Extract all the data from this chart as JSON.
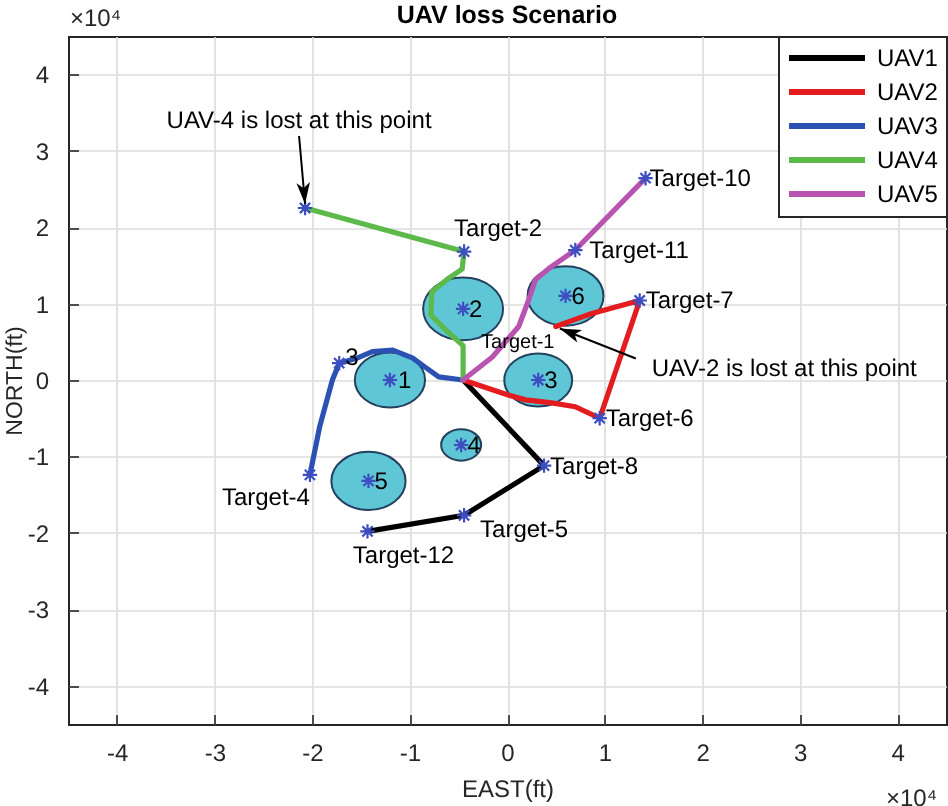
{
  "chart_data": {
    "type": "line",
    "title": "UAV loss Scenario",
    "xlabel": "EAST(ft)",
    "ylabel": "NORTH(ft)",
    "xlim": [
      -4.5,
      4.5
    ],
    "ylim": [
      -4.5,
      4.5
    ],
    "xticks": [
      -4,
      -3,
      -2,
      -1,
      0,
      1,
      2,
      3,
      4
    ],
    "yticks": [
      -4,
      -3,
      -2,
      -1,
      0,
      1,
      2,
      3,
      4
    ],
    "grid": true,
    "legend": "top right",
    "line_style": "solid",
    "series": [
      {
        "name": "UAV1",
        "color": "#000000",
        "x": [
          -0.45,
          0.38,
          -0.44,
          -1.43
        ],
        "values": [
          0,
          -1.12,
          -1.77,
          -1.98
        ]
      },
      {
        "name": "UAV2",
        "color": "#e41b1f",
        "x": [
          -0.45,
          0.02,
          0.19,
          0.46,
          0.7,
          0.95,
          1.36,
          0.87,
          0.67,
          0.5
        ],
        "values": [
          0,
          -0.2,
          -0.26,
          -0.3,
          -0.35,
          -0.5,
          1.04,
          0.87,
          0.78,
          0.7
        ]
      },
      {
        "name": "UAV3",
        "color": "#2b52b3",
        "x": [
          -0.45,
          -0.7,
          -0.83,
          -0.97,
          -1.17,
          -1.38,
          -1.55,
          -1.72,
          -1.79,
          -1.92,
          -2.02
        ],
        "values": [
          0,
          0.04,
          0.16,
          0.29,
          0.39,
          0.37,
          0.28,
          0.22,
          0,
          -0.61,
          -1.24
        ]
      },
      {
        "name": "UAV4",
        "color": "#5cb94a",
        "x": [
          -0.45,
          -0.45,
          -0.6,
          -0.78,
          -0.77,
          -0.6,
          -0.46,
          -0.44,
          -2.07
        ],
        "values": [
          0,
          0.45,
          0.62,
          0.85,
          1.15,
          1.33,
          1.45,
          1.68,
          2.25
        ]
      },
      {
        "name": "UAV5",
        "color": "#b853b0",
        "x": [
          -0.45,
          -0.15,
          0.12,
          0.22,
          0.29,
          0.43,
          0.7,
          1.42
        ],
        "values": [
          0,
          0.3,
          0.7,
          1.04,
          1.31,
          1.46,
          1.7,
          2.64
        ]
      },
      {
        "type": "bubble",
        "color": "#5fc6d6",
        "x": [
          -1.2,
          -0.45,
          0.32,
          -0.47,
          -1.42,
          0.6
        ],
        "values": [
          0,
          0.93,
          0,
          -0.85,
          -1.32,
          1.1
        ],
        "sizes": [
          0.77,
          1,
          0.72,
          0.25,
          0.86,
          0.9
        ]
      },
      {
        "type": "scatter",
        "color": "#3d4fc0",
        "marker": "cross",
        "x": [
          -0.44,
          -1.72,
          -2.02,
          -0.44,
          0.95,
          1.36,
          0.38,
          1.42,
          0.7,
          -1.43,
          -2.07,
          -1.2,
          -0.45,
          0.32,
          -0.47,
          -1.42,
          0.6
        ],
        "values": [
          1.68,
          0.22,
          -1.24,
          -1.77,
          -0.5,
          1.04,
          -1.12,
          2.64,
          1.7,
          -1.98,
          2.25,
          0,
          0.93,
          0,
          -0.85,
          -1.32,
          1.1
        ]
      }
    ],
    "annotations": [
      {
        "text": "Target-1",
        "x": -0.45,
        "y": 0
      },
      {
        "text": "Target-2",
        "x": -0.44,
        "y": 1.68
      },
      {
        "text": "3",
        "x": -1.72,
        "y": 0.22
      },
      {
        "text": "Target-4",
        "x": -2.02,
        "y": -1.24
      },
      {
        "text": "Target-5",
        "x": -0.44,
        "y": -1.77
      },
      {
        "text": "Target-6",
        "x": 0.95,
        "y": -0.5
      },
      {
        "text": "Target-7",
        "x": 1.36,
        "y": 1.04
      },
      {
        "text": "Target-8",
        "x": 0.38,
        "y": -1.12
      },
      {
        "text": "Target-10",
        "x": 1.42,
        "y": 2.64
      },
      {
        "text": "Target-11",
        "x": 0.7,
        "y": 1.7
      },
      {
        "text": "Target-12",
        "x": -1.43,
        "y": -1.98
      },
      {
        "text": "1",
        "x": -1.2,
        "y": 0
      },
      {
        "text": "2",
        "x": -0.45,
        "y": 0.93
      },
      {
        "text": "3",
        "x": 0.32,
        "y": 0
      },
      {
        "text": "4",
        "x": -0.47,
        "y": -0.85
      },
      {
        "text": "5",
        "x": -1.42,
        "y": -1.32
      },
      {
        "text": "6",
        "x": 0.6,
        "y": 1.1
      },
      {
        "text": "UAV-4 is lost at this point",
        "x": -2.07,
        "y": 2.25
      },
      {
        "text": "UAV-2 is lost at this point",
        "x": 0.5,
        "y": 0.7
      },
      "×10⁴",
      "×10⁴"
    ]
  }
}
